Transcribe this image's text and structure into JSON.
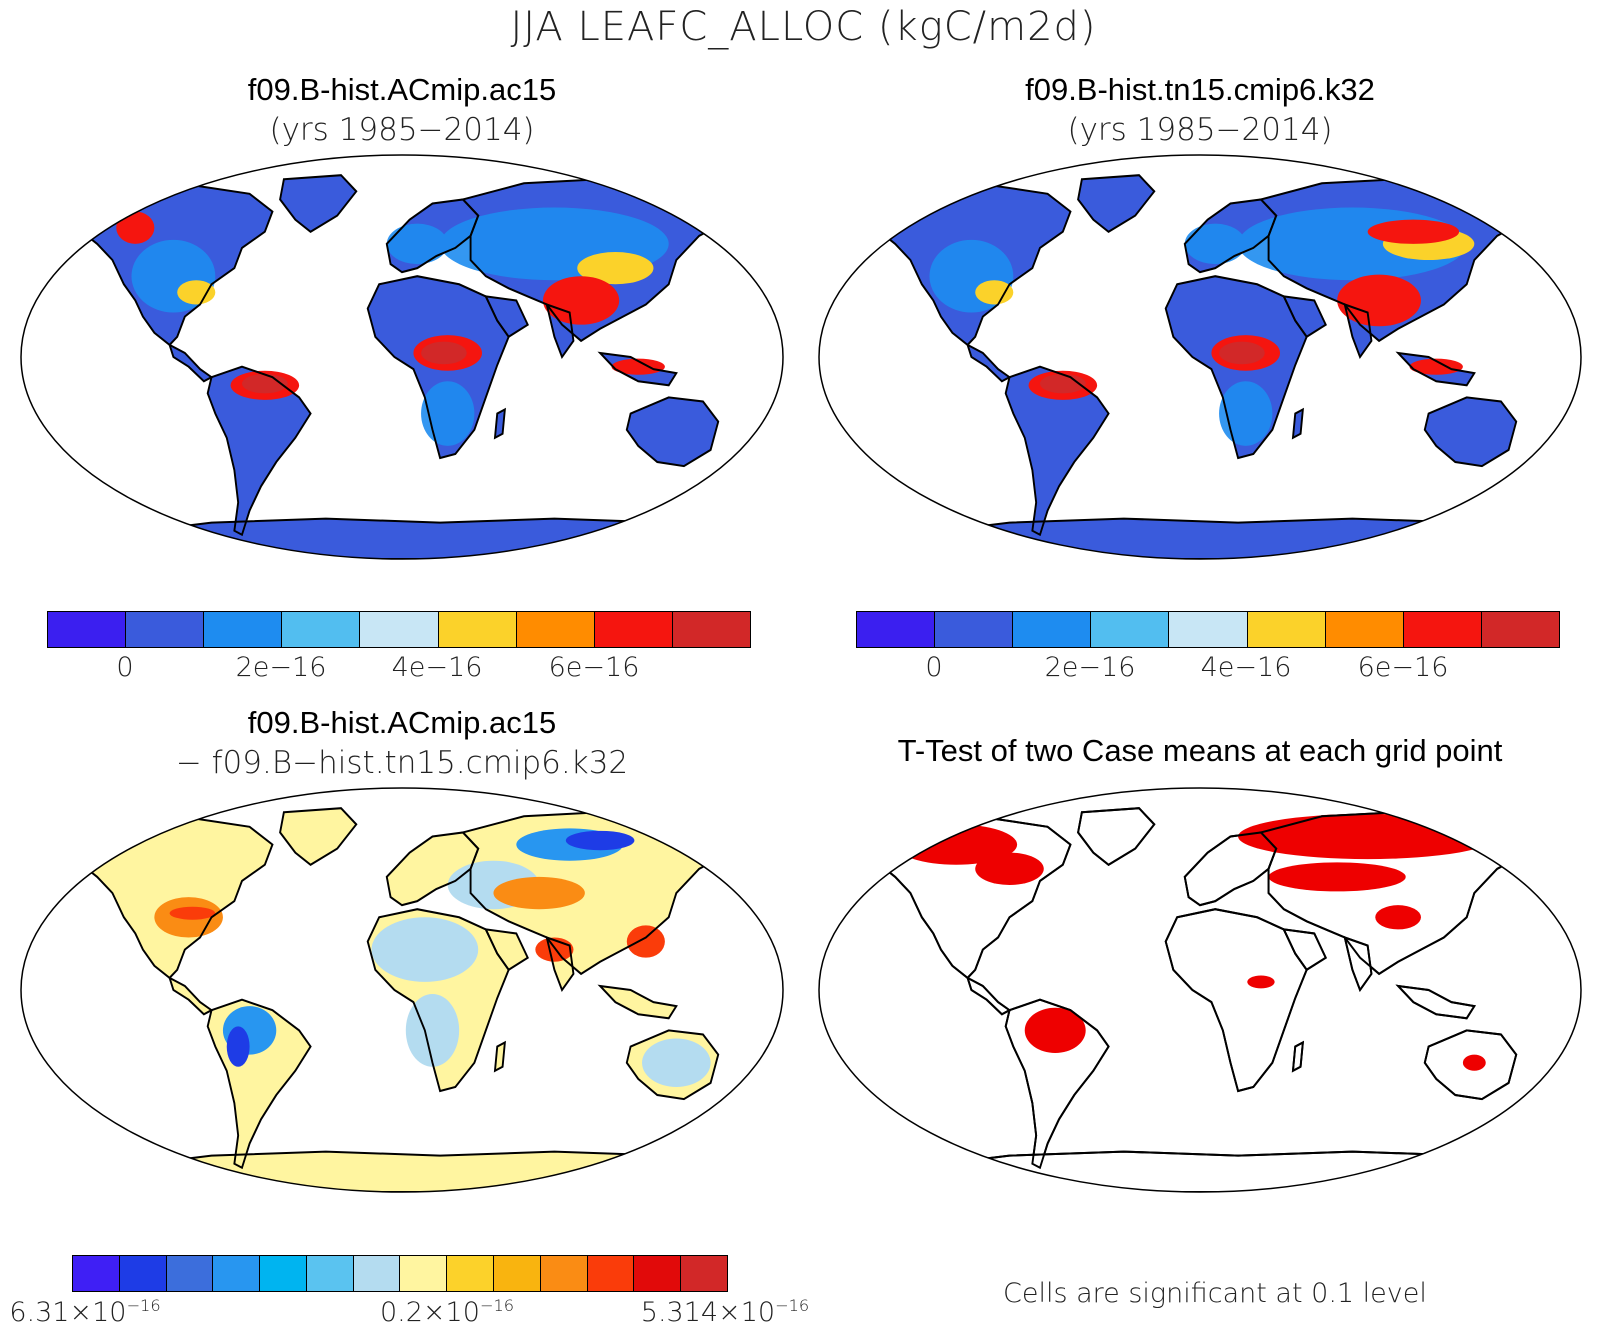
{
  "figure": {
    "title": "JJA LEAFC_ALLOC (kgC/m2d)"
  },
  "panels": {
    "top_left": {
      "title": "f09.B-hist.ACmip.ac15",
      "subtitle": "(yrs 1985−2014)"
    },
    "top_right": {
      "title": "f09.B-hist.tn15.cmip6.k32",
      "subtitle": "(yrs 1985−2014)"
    },
    "bottom_left": {
      "title": "f09.B-hist.ACmip.ac15",
      "subtitle": "− f09.B−hist.tn15.cmip6.k32"
    },
    "bottom_right": {
      "title": "T-Test of two Case means at each grid point",
      "note": "Cells are significant at 0.1 level"
    }
  },
  "colorbars": {
    "mean": {
      "colors": [
        "#3b1ff0",
        "#3a5bdc",
        "#1e8cf0",
        "#52bef0",
        "#c8e6f5",
        "#fbd22a",
        "#ff8c00",
        "#f5150f",
        "#d22828"
      ],
      "tick_labels": [
        "0",
        "2e−16",
        "4e−16",
        "6e−16"
      ]
    },
    "diff": {
      "colors": [
        "#3f1ff5",
        "#1e3ce6",
        "#3c6edc",
        "#2896f0",
        "#00b4f0",
        "#5ac3f0",
        "#b4dcf0",
        "#fff5a0",
        "#fcd22a",
        "#f9b40f",
        "#fa8c14",
        "#fa3c0a",
        "#e10a0a",
        "#d22828"
      ],
      "label_left_mantissa": "6.31×10",
      "label_left_exp": "−16",
      "label_mid_mantissa": "0.2×10",
      "label_mid_exp": "−16",
      "label_right_mantissa": "5.314×10",
      "label_right_exp": "−16"
    }
  },
  "map_fills": {
    "mean_land": "#3a5bdc",
    "mean_tropics": "#d22828",
    "mean_warm": "#f5150f",
    "mean_mid": "#1e8cf0",
    "diff_land": "#c8e6f5",
    "diff_pale": "#fff5a0",
    "diff_hot": "#fa3c0a",
    "diff_cold": "#1e3ce6",
    "ttest_sig": "#ee0000",
    "ocean": "#ffffff"
  }
}
